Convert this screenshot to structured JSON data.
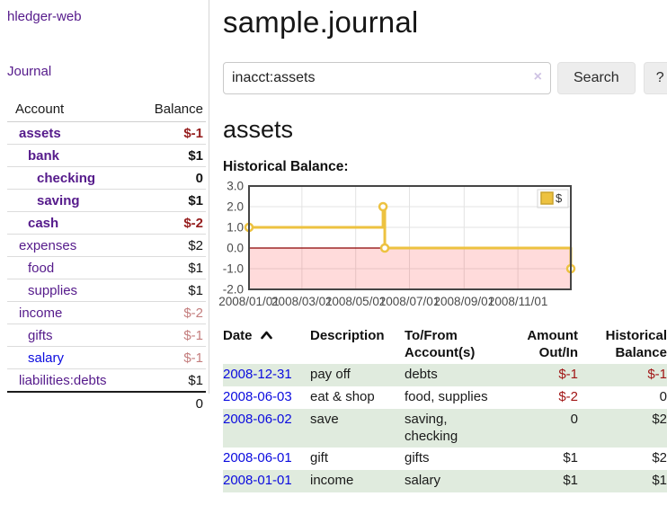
{
  "app": {
    "brand": "hledger-web"
  },
  "nav": {
    "journal": "Journal"
  },
  "colors": {
    "link_purple": "#551a8b",
    "link_blue": "#0b0bdf",
    "negative_strong": "#951d1d",
    "negative_muted": "#c47e7e",
    "row_green": "#e0ebde",
    "series_yellow": "#edc240",
    "zero_line": "#8b0000",
    "plot_border": "#454545",
    "gridline": "#e3e3e3"
  },
  "sidebar": {
    "account_header": "Account",
    "balance_header": "Balance",
    "rows": [
      {
        "name": "assets",
        "depth": 0,
        "balance": "$-1",
        "bold": true,
        "name_style": "purple",
        "value_style": "neg"
      },
      {
        "name": "bank",
        "depth": 1,
        "balance": "$1",
        "bold": true,
        "name_style": "purple",
        "value_style": "pos"
      },
      {
        "name": "checking",
        "depth": 2,
        "balance": "0",
        "bold": true,
        "name_style": "purple",
        "value_style": "pos"
      },
      {
        "name": "saving",
        "depth": 2,
        "balance": "$1",
        "bold": true,
        "name_style": "purple",
        "value_style": "pos"
      },
      {
        "name": "cash",
        "depth": 1,
        "balance": "$-2",
        "bold": true,
        "name_style": "purple",
        "value_style": "neg"
      },
      {
        "name": "expenses",
        "depth": 0,
        "balance": "$2",
        "bold": false,
        "name_style": "purple",
        "value_style": "pos"
      },
      {
        "name": "food",
        "depth": 1,
        "balance": "$1",
        "bold": false,
        "name_style": "purple",
        "value_style": "pos"
      },
      {
        "name": "supplies",
        "depth": 1,
        "balance": "$1",
        "bold": false,
        "name_style": "purple",
        "value_style": "pos"
      },
      {
        "name": "income",
        "depth": 0,
        "balance": "$-2",
        "bold": false,
        "name_style": "purple",
        "value_style": "neg-muted"
      },
      {
        "name": "gifts",
        "depth": 1,
        "balance": "$-1",
        "bold": false,
        "name_style": "purple",
        "value_style": "neg-muted"
      },
      {
        "name": "salary",
        "depth": 1,
        "balance": "$-1",
        "bold": false,
        "name_style": "blue",
        "value_style": "neg-muted"
      },
      {
        "name": "liabilities:debts",
        "depth": 0,
        "balance": "$1",
        "bold": false,
        "name_style": "purple",
        "value_style": "pos"
      }
    ],
    "total": "0"
  },
  "main": {
    "title": "sample.journal",
    "search": {
      "value": "inacct:assets",
      "clear_icon": "×",
      "search_button": "Search",
      "help_button": "?"
    },
    "account_heading": "assets",
    "chart_title": "Historical Balance:"
  },
  "chart_data": {
    "type": "line",
    "step": true,
    "title": "Historical Balance:",
    "x_range": [
      "2008/01/01",
      "2008/12/31"
    ],
    "ylim": [
      -2,
      3
    ],
    "y_ticks": [
      "3.0",
      "2.0",
      "1.0",
      "0.0",
      "-1.0",
      "-2.0"
    ],
    "x_ticks": [
      "2008/01/01",
      "2008/03/01",
      "2008/05/01",
      "2008/07/01",
      "2008/09/01",
      "2008/11/01"
    ],
    "series": [
      {
        "name": "$",
        "color": "#edc240",
        "points": [
          {
            "x": "2008/01/01",
            "y": 1
          },
          {
            "x": "2008/06/01",
            "y": 2
          },
          {
            "x": "2008/06/03",
            "y": 0
          },
          {
            "x": "2008/12/31",
            "y": -1
          }
        ]
      }
    ],
    "legend": {
      "position": "top-right",
      "label": "$"
    },
    "grid": true
  },
  "register": {
    "headers": {
      "date": "Date",
      "description": "Description",
      "accounts_lines": [
        "To/From",
        "Account(s)"
      ],
      "amount_lines": [
        "Amount",
        "Out/In"
      ],
      "balance_lines": [
        "Historical",
        "Balance"
      ]
    },
    "rows": [
      {
        "date": "2008-12-31",
        "description": "pay off",
        "accounts_lines": [
          "debts"
        ],
        "amount": "$-1",
        "amount_style": "neg",
        "balance": "$-1",
        "balance_style": "neg"
      },
      {
        "date": "2008-06-03",
        "description": "eat & shop",
        "accounts_lines": [
          "food, supplies"
        ],
        "amount": "$-2",
        "amount_style": "neg",
        "balance": "0",
        "balance_style": "pos"
      },
      {
        "date": "2008-06-02",
        "description": "save",
        "accounts_lines": [
          "saving,",
          "checking"
        ],
        "amount": "0",
        "amount_style": "pos",
        "balance": "$2",
        "balance_style": "pos"
      },
      {
        "date": "2008-06-01",
        "description": "gift",
        "accounts_lines": [
          "gifts"
        ],
        "amount": "$1",
        "amount_style": "pos",
        "balance": "$2",
        "balance_style": "pos"
      },
      {
        "date": "2008-01-01",
        "description": "income",
        "accounts_lines": [
          "salary"
        ],
        "amount": "$1",
        "amount_style": "pos",
        "balance": "$1",
        "balance_style": "pos"
      }
    ]
  }
}
